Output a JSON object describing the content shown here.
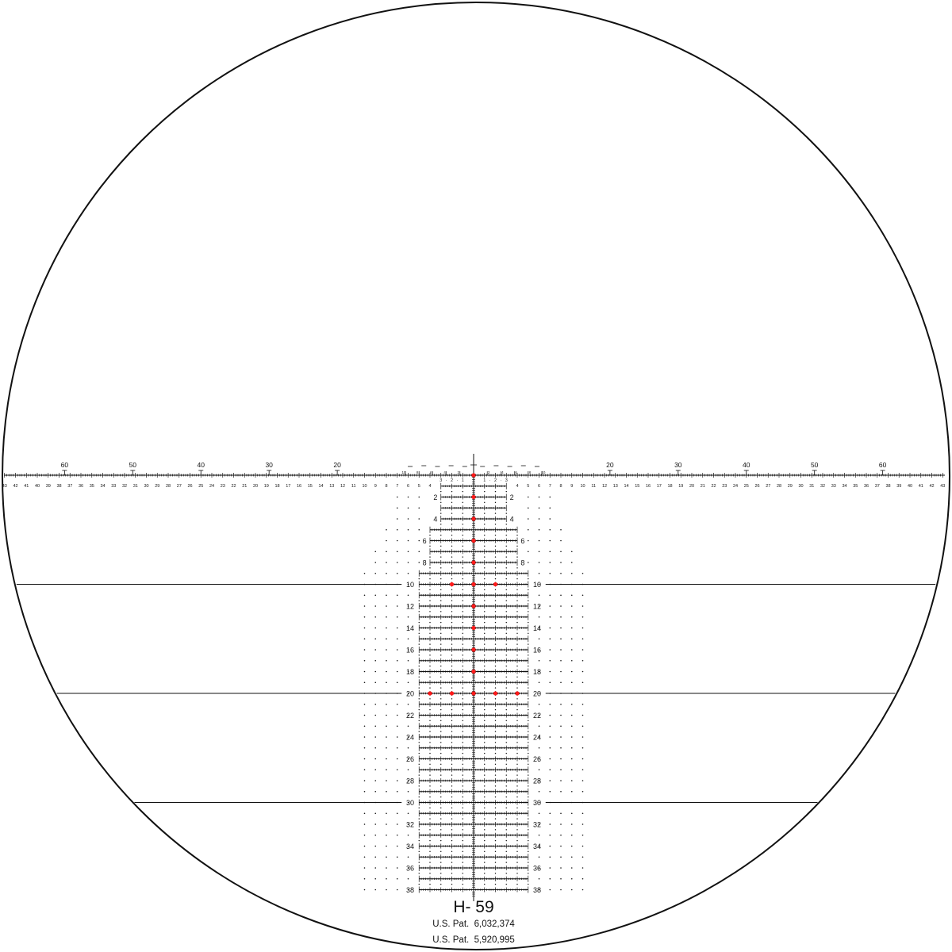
{
  "reticle": {
    "name": "H- 59",
    "patents": [
      "U.S. Pat.  6,032,374",
      "U.S. Pat.  5,920,995"
    ],
    "horizontal_scale_labels": [
      1,
      2,
      3,
      4,
      5,
      6,
      7,
      8,
      9,
      10,
      11,
      12,
      13,
      14,
      15,
      16,
      17,
      18,
      19,
      20,
      21,
      22,
      23,
      24,
      25,
      26,
      27,
      28,
      29,
      30,
      31,
      32,
      33,
      34,
      35,
      36,
      37,
      38,
      39,
      40,
      41,
      42,
      43
    ],
    "near_center_labels": [
      "3",
      "·",
      "2",
      "·",
      "1"
    ],
    "range_labels_large": [
      20,
      30,
      40,
      50,
      60
    ],
    "range_labels_small": [
      2,
      4,
      6,
      8,
      10
    ],
    "row_labels": [
      2,
      4,
      6,
      8,
      10,
      12,
      14,
      16,
      18,
      20,
      22,
      24,
      26,
      28,
      30,
      32,
      34,
      36,
      38
    ],
    "row_count": 38,
    "long_line_rows": [
      10,
      20,
      30
    ],
    "red_dots": [
      {
        "row": 0,
        "offsets": [
          0
        ]
      },
      {
        "row": 2,
        "offsets": [
          0
        ]
      },
      {
        "row": 4,
        "offsets": [
          0
        ]
      },
      {
        "row": 6,
        "offsets": [
          0
        ]
      },
      {
        "row": 8,
        "offsets": [
          0
        ]
      },
      {
        "row": 10,
        "offsets": [
          -2,
          0,
          2
        ]
      },
      {
        "row": 12,
        "offsets": [
          0
        ]
      },
      {
        "row": 14,
        "offsets": [
          0
        ]
      },
      {
        "row": 16,
        "offsets": [
          0
        ]
      },
      {
        "row": 18,
        "offsets": [
          0
        ]
      },
      {
        "row": 20,
        "offsets": [
          -4,
          -2,
          0,
          2,
          4
        ]
      }
    ],
    "colors": {
      "line": "#111111",
      "accent": "#ff1a1a",
      "background": "#ffffff"
    }
  }
}
